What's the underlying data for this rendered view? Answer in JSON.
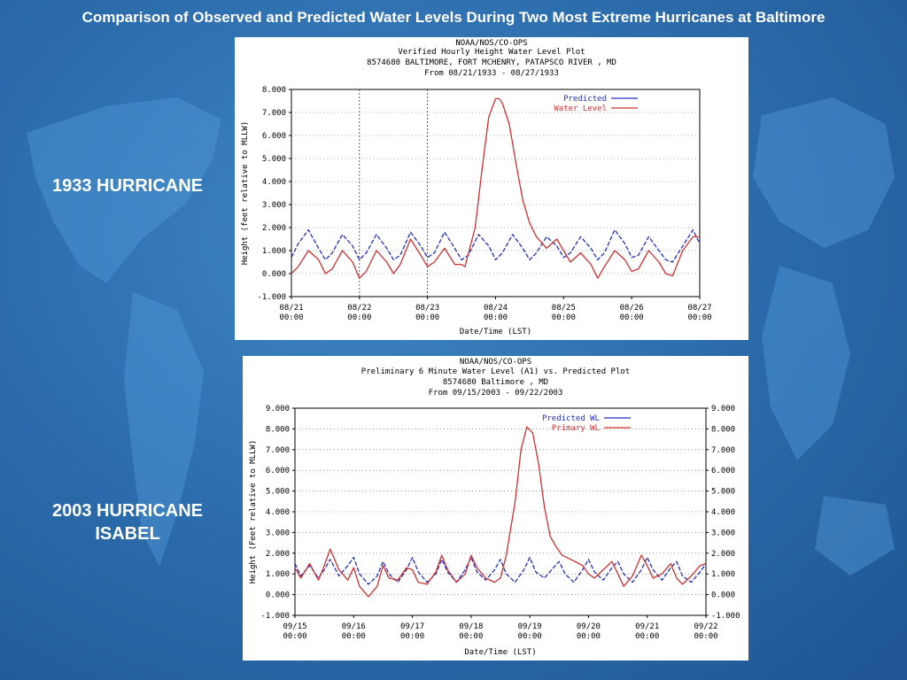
{
  "slide": {
    "title": "Comparison of Observed and Predicted Water Levels During Two Most Extreme Hurricanes at Baltimore",
    "label_1933": "1933 HURRICANE",
    "label_2003_line1": "2003 HURRICANE",
    "label_2003_line2": "ISABEL"
  },
  "colors": {
    "predicted": "#2030c0",
    "observed": "#d03030",
    "grid": "#555555"
  },
  "chart_data": [
    {
      "type": "line",
      "header": [
        "NOAA/NOS/CO-OPS",
        "Verified Hourly Height Water Level Plot",
        "8574680 BALTIMORE, FORT MCHENRY, PATAPSCO RIVER , MD",
        "From 08/21/1933 - 08/27/1933"
      ],
      "xlabel": "Date/Time (LST)",
      "ylabel": "Height (feet relative to MLLW)",
      "ylim": [
        -1,
        8
      ],
      "yticks": [
        "8.000",
        "7.000",
        "6.000",
        "5.000",
        "4.000",
        "3.000",
        "2.000",
        "1.000",
        "0.000",
        "-1.000"
      ],
      "xticks": [
        {
          "d": "08/21",
          "t": "00:00"
        },
        {
          "d": "08/22",
          "t": "00:00"
        },
        {
          "d": "08/23",
          "t": "00:00"
        },
        {
          "d": "08/24",
          "t": "00:00"
        },
        {
          "d": "08/25",
          "t": "00:00"
        },
        {
          "d": "08/26",
          "t": "00:00"
        },
        {
          "d": "08/27",
          "t": "00:00"
        }
      ],
      "xlim": [
        0,
        6
      ],
      "vgrid_days": [
        1,
        2
      ],
      "legend": "top-right",
      "series": [
        {
          "name": "Predicted",
          "style": "predicted",
          "x": [
            0,
            0.1,
            0.25,
            0.4,
            0.5,
            0.6,
            0.75,
            0.9,
            1.0,
            1.1,
            1.25,
            1.4,
            1.5,
            1.6,
            1.75,
            1.9,
            2.0,
            2.1,
            2.25,
            2.4,
            2.5,
            2.6,
            2.75,
            2.9,
            3.0,
            3.1,
            3.25,
            3.4,
            3.5,
            3.6,
            3.75,
            3.9,
            4.0,
            4.1,
            4.25,
            4.4,
            4.5,
            4.6,
            4.75,
            4.9,
            5.0,
            5.1,
            5.25,
            5.4,
            5.5,
            5.6,
            5.75,
            5.9,
            6.0
          ],
          "y": [
            0.7,
            1.3,
            1.9,
            1.1,
            0.6,
            0.9,
            1.7,
            1.2,
            0.6,
            0.9,
            1.7,
            1.1,
            0.6,
            0.8,
            1.8,
            1.2,
            0.7,
            0.9,
            1.8,
            1.1,
            0.6,
            0.8,
            1.7,
            1.2,
            0.6,
            0.9,
            1.7,
            1.1,
            0.6,
            0.9,
            1.6,
            1.2,
            0.7,
            0.9,
            1.6,
            1.1,
            0.6,
            0.9,
            1.9,
            1.3,
            0.7,
            0.8,
            1.6,
            1.0,
            0.6,
            0.5,
            1.2,
            1.9,
            1.3
          ]
        },
        {
          "name": "Water Level",
          "style": "observed",
          "x": [
            0,
            0.1,
            0.25,
            0.4,
            0.5,
            0.6,
            0.75,
            0.9,
            1.0,
            1.1,
            1.25,
            1.4,
            1.5,
            1.6,
            1.75,
            1.9,
            2.0,
            2.1,
            2.25,
            2.4,
            2.5,
            2.55,
            2.7,
            2.8,
            2.9,
            3.0,
            3.05,
            3.1,
            3.2,
            3.3,
            3.4,
            3.5,
            3.6,
            3.75,
            3.9,
            4.0,
            4.1,
            4.25,
            4.4,
            4.5,
            4.6,
            4.75,
            4.9,
            5.0,
            5.1,
            5.25,
            5.4,
            5.5,
            5.6,
            5.75,
            5.9,
            6.0
          ],
          "y": [
            0.0,
            0.3,
            1.0,
            0.6,
            0.0,
            0.2,
            1.0,
            0.5,
            -0.2,
            0.1,
            1.0,
            0.5,
            0.0,
            0.4,
            1.5,
            0.8,
            0.3,
            0.5,
            1.1,
            0.4,
            0.4,
            0.3,
            2.0,
            4.5,
            6.8,
            7.6,
            7.6,
            7.4,
            6.5,
            4.8,
            3.2,
            2.2,
            1.6,
            1.1,
            1.5,
            1.0,
            0.5,
            0.9,
            0.4,
            -0.2,
            0.3,
            1.0,
            0.6,
            0.1,
            0.2,
            1.0,
            0.5,
            0.0,
            -0.1,
            1.0,
            1.6,
            1.6
          ]
        }
      ]
    },
    {
      "type": "line",
      "header": [
        "NOAA/NOS/CO-OPS",
        "Preliminary 6 Minute Water Level (A1) vs. Predicted Plot",
        "8574680 Baltimore , MD",
        "From 09/15/2003 - 09/22/2003"
      ],
      "xlabel": "Date/Time (LST)",
      "ylabel": "Height (Feet relative to MLLW)",
      "ylim": [
        -1,
        9
      ],
      "yticks": [
        "9.000",
        "8.000",
        "7.000",
        "6.000",
        "5.000",
        "4.000",
        "3.000",
        "2.000",
        "1.000",
        "0.000",
        "-1.000"
      ],
      "xticks": [
        {
          "d": "09/15",
          "t": "00:00"
        },
        {
          "d": "09/16",
          "t": "00:00"
        },
        {
          "d": "09/17",
          "t": "00:00"
        },
        {
          "d": "09/18",
          "t": "00:00"
        },
        {
          "d": "09/19",
          "t": "00:00"
        },
        {
          "d": "09/20",
          "t": "00:00"
        },
        {
          "d": "09/21",
          "t": "00:00"
        },
        {
          "d": "09/22",
          "t": "00:00"
        }
      ],
      "xlim": [
        0,
        7
      ],
      "vgrid_days": [],
      "legend": "top-right",
      "series": [
        {
          "name": "Predicted WL",
          "style": "predicted",
          "x": [
            0,
            0.1,
            0.25,
            0.4,
            0.5,
            0.6,
            0.75,
            0.9,
            1.0,
            1.1,
            1.25,
            1.4,
            1.5,
            1.6,
            1.75,
            1.9,
            2.0,
            2.1,
            2.25,
            2.4,
            2.5,
            2.6,
            2.75,
            2.9,
            3.0,
            3.1,
            3.25,
            3.4,
            3.5,
            3.6,
            3.75,
            3.9,
            4.0,
            4.1,
            4.25,
            4.4,
            4.5,
            4.6,
            4.75,
            4.9,
            5.0,
            5.1,
            5.25,
            5.4,
            5.5,
            5.6,
            5.75,
            5.9,
            6.0,
            6.1,
            6.25,
            6.4,
            6.5,
            6.6,
            6.75,
            6.9,
            7.0
          ],
          "y": [
            1.5,
            0.9,
            1.4,
            0.8,
            1.2,
            1.7,
            0.9,
            1.4,
            1.8,
            1.0,
            0.5,
            0.9,
            1.6,
            1.0,
            0.6,
            1.2,
            1.8,
            1.1,
            0.6,
            1.0,
            1.7,
            1.1,
            0.6,
            1.2,
            1.8,
            1.1,
            0.7,
            1.2,
            1.7,
            1.0,
            0.6,
            1.2,
            1.8,
            1.1,
            0.8,
            1.3,
            1.6,
            1.0,
            0.6,
            1.2,
            1.7,
            1.1,
            0.7,
            1.3,
            1.6,
            1.0,
            0.6,
            1.2,
            1.8,
            1.2,
            0.7,
            1.3,
            1.6,
            0.9,
            0.6,
            1.1,
            1.5
          ]
        },
        {
          "name": "Primary WL",
          "style": "observed",
          "x": [
            0,
            0.1,
            0.25,
            0.4,
            0.5,
            0.6,
            0.75,
            0.9,
            1.0,
            1.1,
            1.25,
            1.4,
            1.5,
            1.6,
            1.75,
            1.9,
            2.0,
            2.1,
            2.25,
            2.4,
            2.5,
            2.6,
            2.75,
            2.9,
            3.0,
            3.1,
            3.25,
            3.4,
            3.5,
            3.6,
            3.75,
            3.85,
            3.95,
            4.05,
            4.15,
            4.25,
            4.35,
            4.45,
            4.55,
            4.7,
            4.9,
            5.0,
            5.1,
            5.25,
            5.4,
            5.5,
            5.6,
            5.75,
            5.9,
            6.0,
            6.1,
            6.25,
            6.4,
            6.5,
            6.6,
            6.75,
            6.9,
            7.0
          ],
          "y": [
            1.3,
            0.8,
            1.5,
            0.7,
            1.4,
            2.2,
            1.2,
            0.7,
            1.3,
            0.4,
            -0.1,
            0.4,
            1.4,
            0.8,
            0.7,
            1.3,
            1.2,
            0.6,
            0.5,
            1.1,
            1.9,
            1.2,
            0.6,
            1.0,
            1.9,
            1.3,
            0.8,
            0.6,
            0.8,
            1.9,
            4.5,
            7.0,
            8.1,
            7.8,
            6.3,
            4.2,
            2.8,
            2.3,
            1.9,
            1.7,
            1.4,
            1.0,
            0.8,
            1.2,
            1.6,
            1.0,
            0.4,
            0.9,
            1.9,
            1.4,
            0.8,
            1.0,
            1.5,
            0.8,
            0.5,
            0.9,
            1.4,
            1.5
          ]
        }
      ]
    }
  ]
}
